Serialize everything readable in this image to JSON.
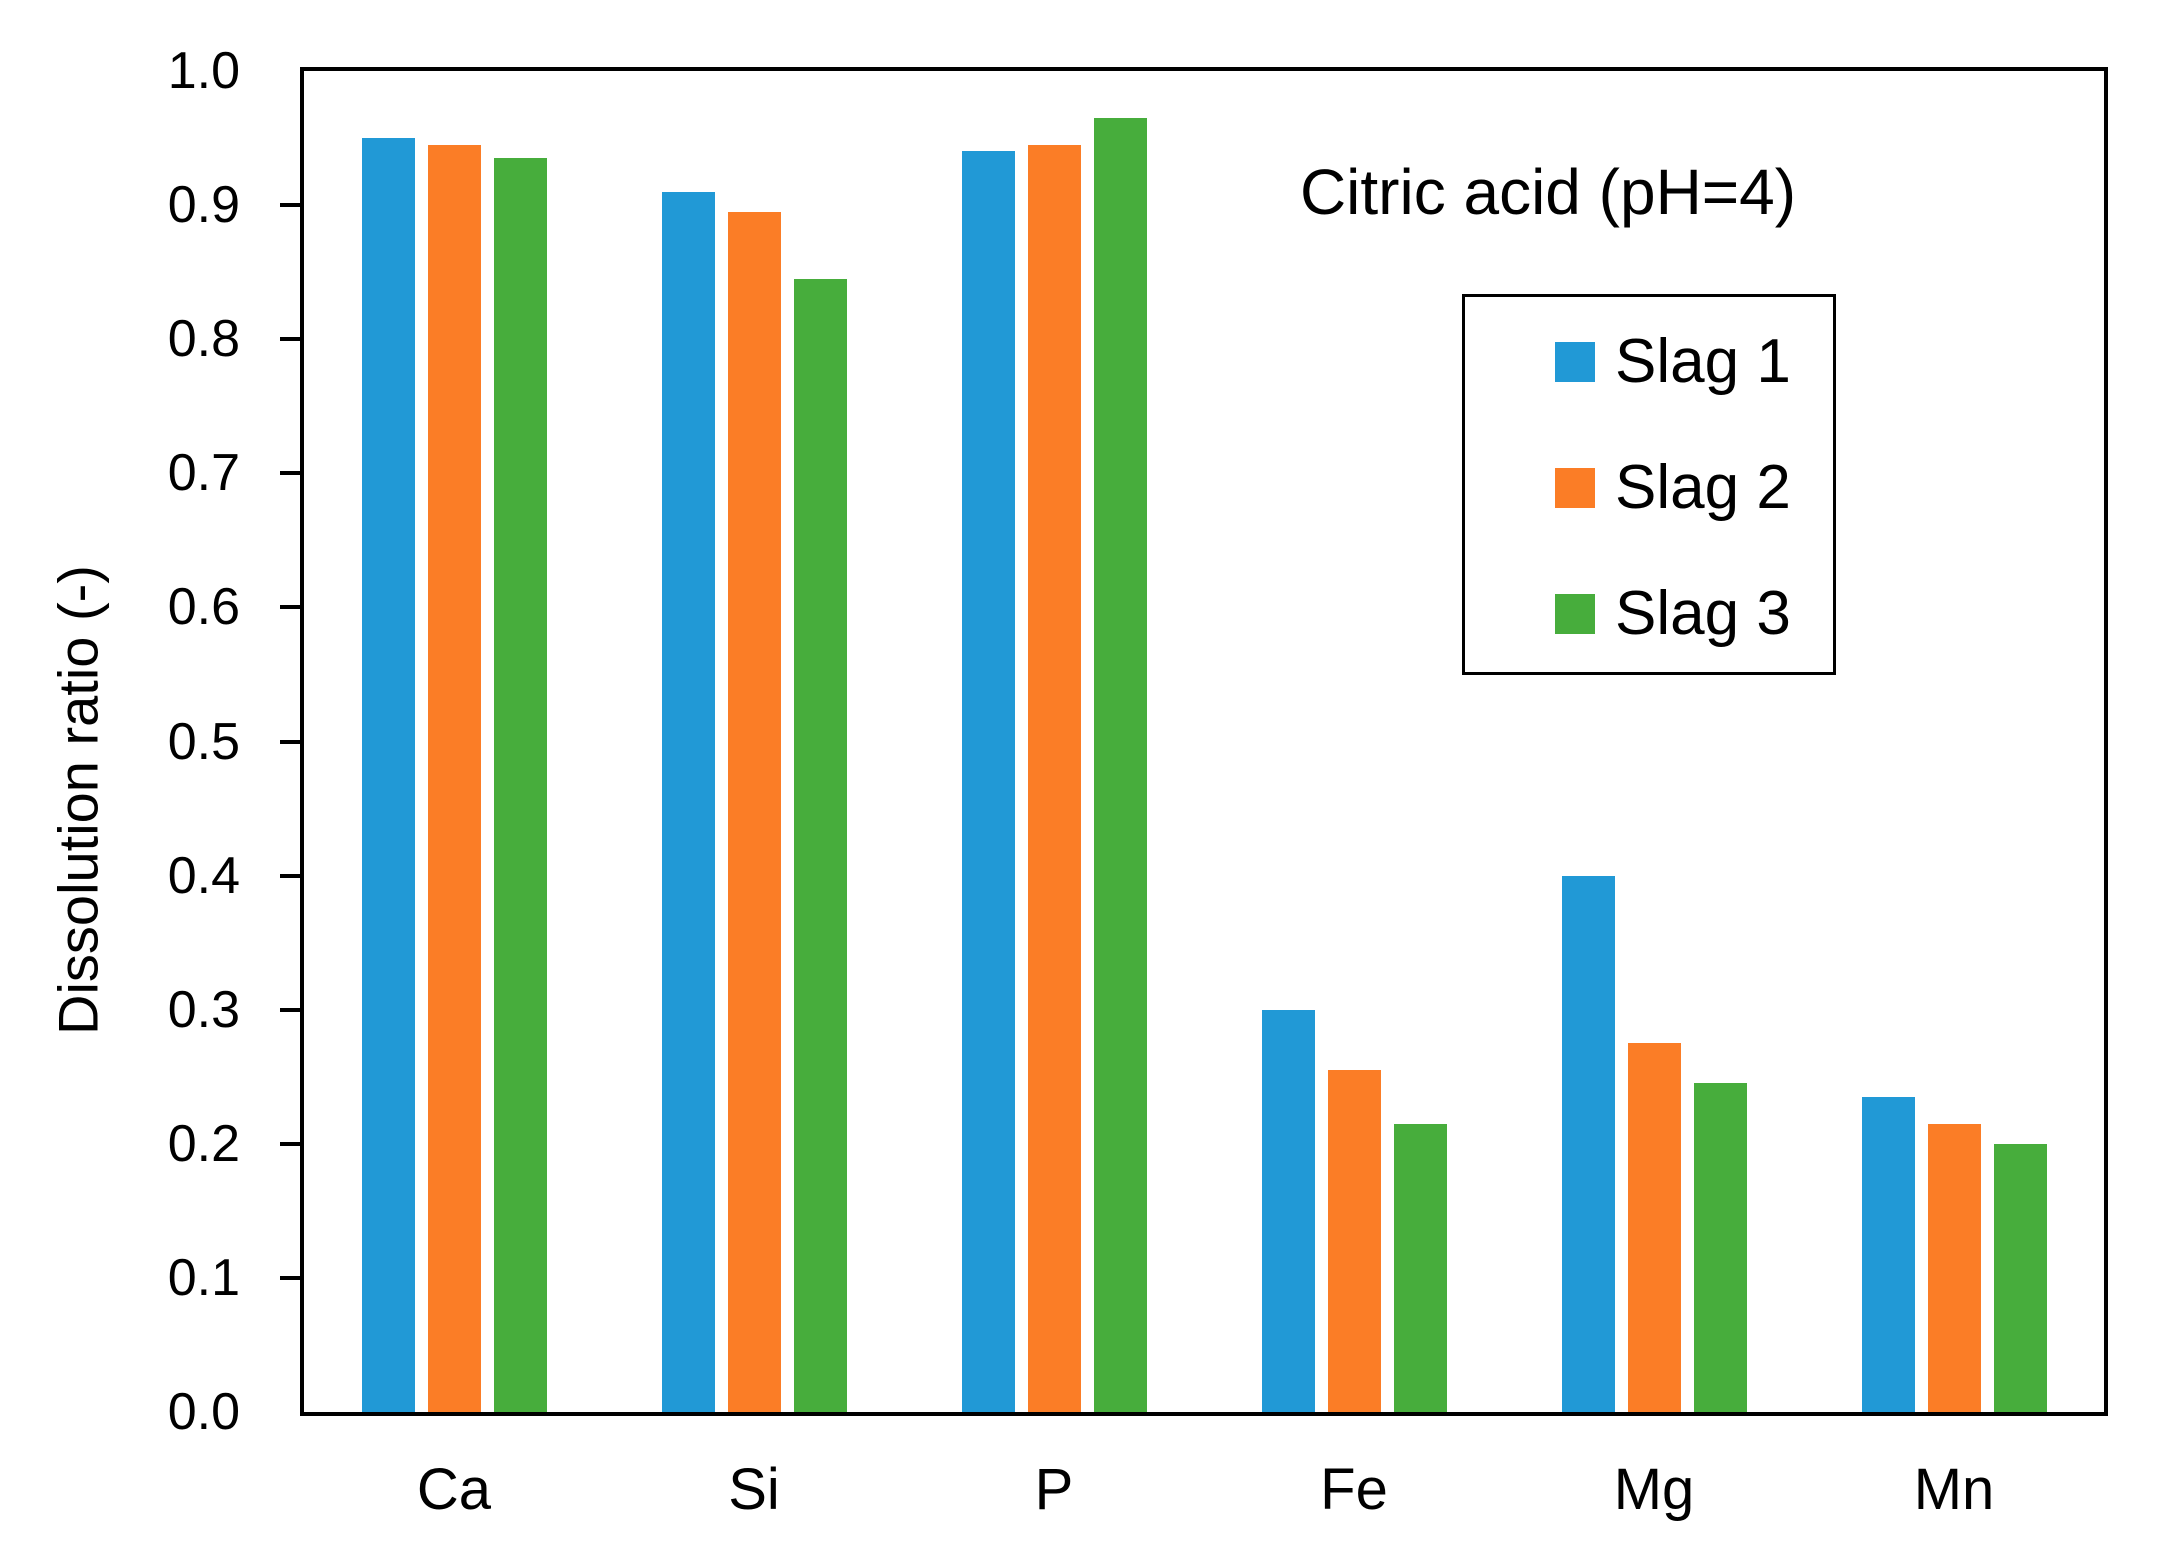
{
  "chart_data": {
    "type": "bar",
    "title": "Citric acid (pH=4)",
    "xlabel": "",
    "ylabel": "Dissolution ratio (-)",
    "categories": [
      "Ca",
      "Si",
      "P",
      "Fe",
      "Mg",
      "Mn"
    ],
    "series": [
      {
        "name": "Slag 1",
        "color": "#2199D6",
        "values": [
          0.95,
          0.91,
          0.94,
          0.3,
          0.4,
          0.235
        ]
      },
      {
        "name": "Slag 2",
        "color": "#FB7D26",
        "values": [
          0.945,
          0.895,
          0.945,
          0.255,
          0.275,
          0.215
        ]
      },
      {
        "name": "Slag 3",
        "color": "#47AD3C",
        "values": [
          0.935,
          0.845,
          0.965,
          0.215,
          0.245,
          0.2
        ]
      }
    ],
    "ylim": [
      0.0,
      1.0
    ],
    "yticks": [
      "0.0",
      "0.1",
      "0.2",
      "0.3",
      "0.4",
      "0.5",
      "0.6",
      "0.7",
      "0.8",
      "0.9",
      "1.0"
    ],
    "grid": false,
    "legend_position": "upper right",
    "legend_border": true,
    "axis_color": "#000000",
    "background_color": "#FFFFFF"
  }
}
